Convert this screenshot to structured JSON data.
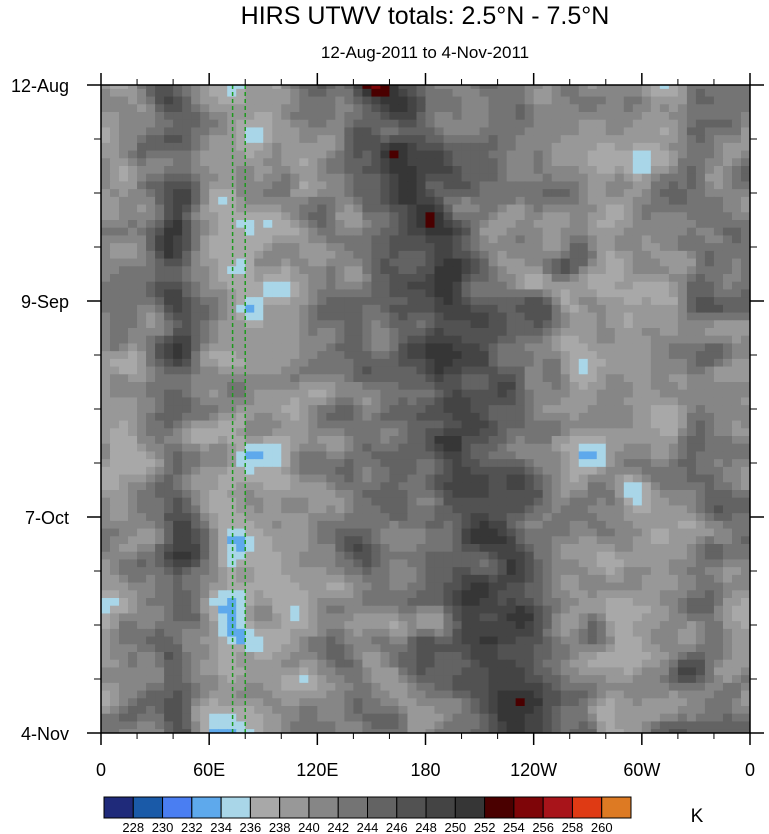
{
  "chart_data": {
    "type": "heatmap",
    "title": "HIRS UTWV totals: 2.5°N - 7.5°N",
    "subtitle": "12-Aug-2011 to 4-Nov-2011",
    "x_ticks": [
      "0",
      "60E",
      "120E",
      "180",
      "120W",
      "60W",
      "0"
    ],
    "x_tick_values": [
      0,
      60,
      120,
      180,
      240,
      300,
      360
    ],
    "y_ticks": [
      "12-Aug",
      "9-Sep",
      "7-Oct",
      "4-Nov"
    ],
    "y_tick_days": [
      0,
      28,
      56,
      84
    ],
    "xlim": [
      0,
      360
    ],
    "ylim_days": [
      0,
      84
    ],
    "units": "K",
    "levels": [
      "228",
      "230",
      "232",
      "234",
      "236",
      "238",
      "240",
      "242",
      "244",
      "246",
      "248",
      "250",
      "252",
      "254",
      "256",
      "258",
      "260"
    ],
    "level_values": [
      228,
      230,
      232,
      234,
      236,
      238,
      240,
      242,
      244,
      246,
      248,
      250,
      252,
      254,
      256,
      258,
      260
    ],
    "colors": [
      "#1f2a7a",
      "#1a5aa8",
      "#4a7ef2",
      "#5ea9ec",
      "#a9d6e8",
      "#a8a8a8",
      "#989898",
      "#868686",
      "#747474",
      "#636363",
      "#525252",
      "#444444",
      "#363636",
      "#4a0000",
      "#7e0508",
      "#a8141a",
      "#df3a14",
      "#dd7a23"
    ],
    "reference_lines_lon": [
      73,
      80
    ],
    "reference_line_color": "#1e9a1e"
  }
}
